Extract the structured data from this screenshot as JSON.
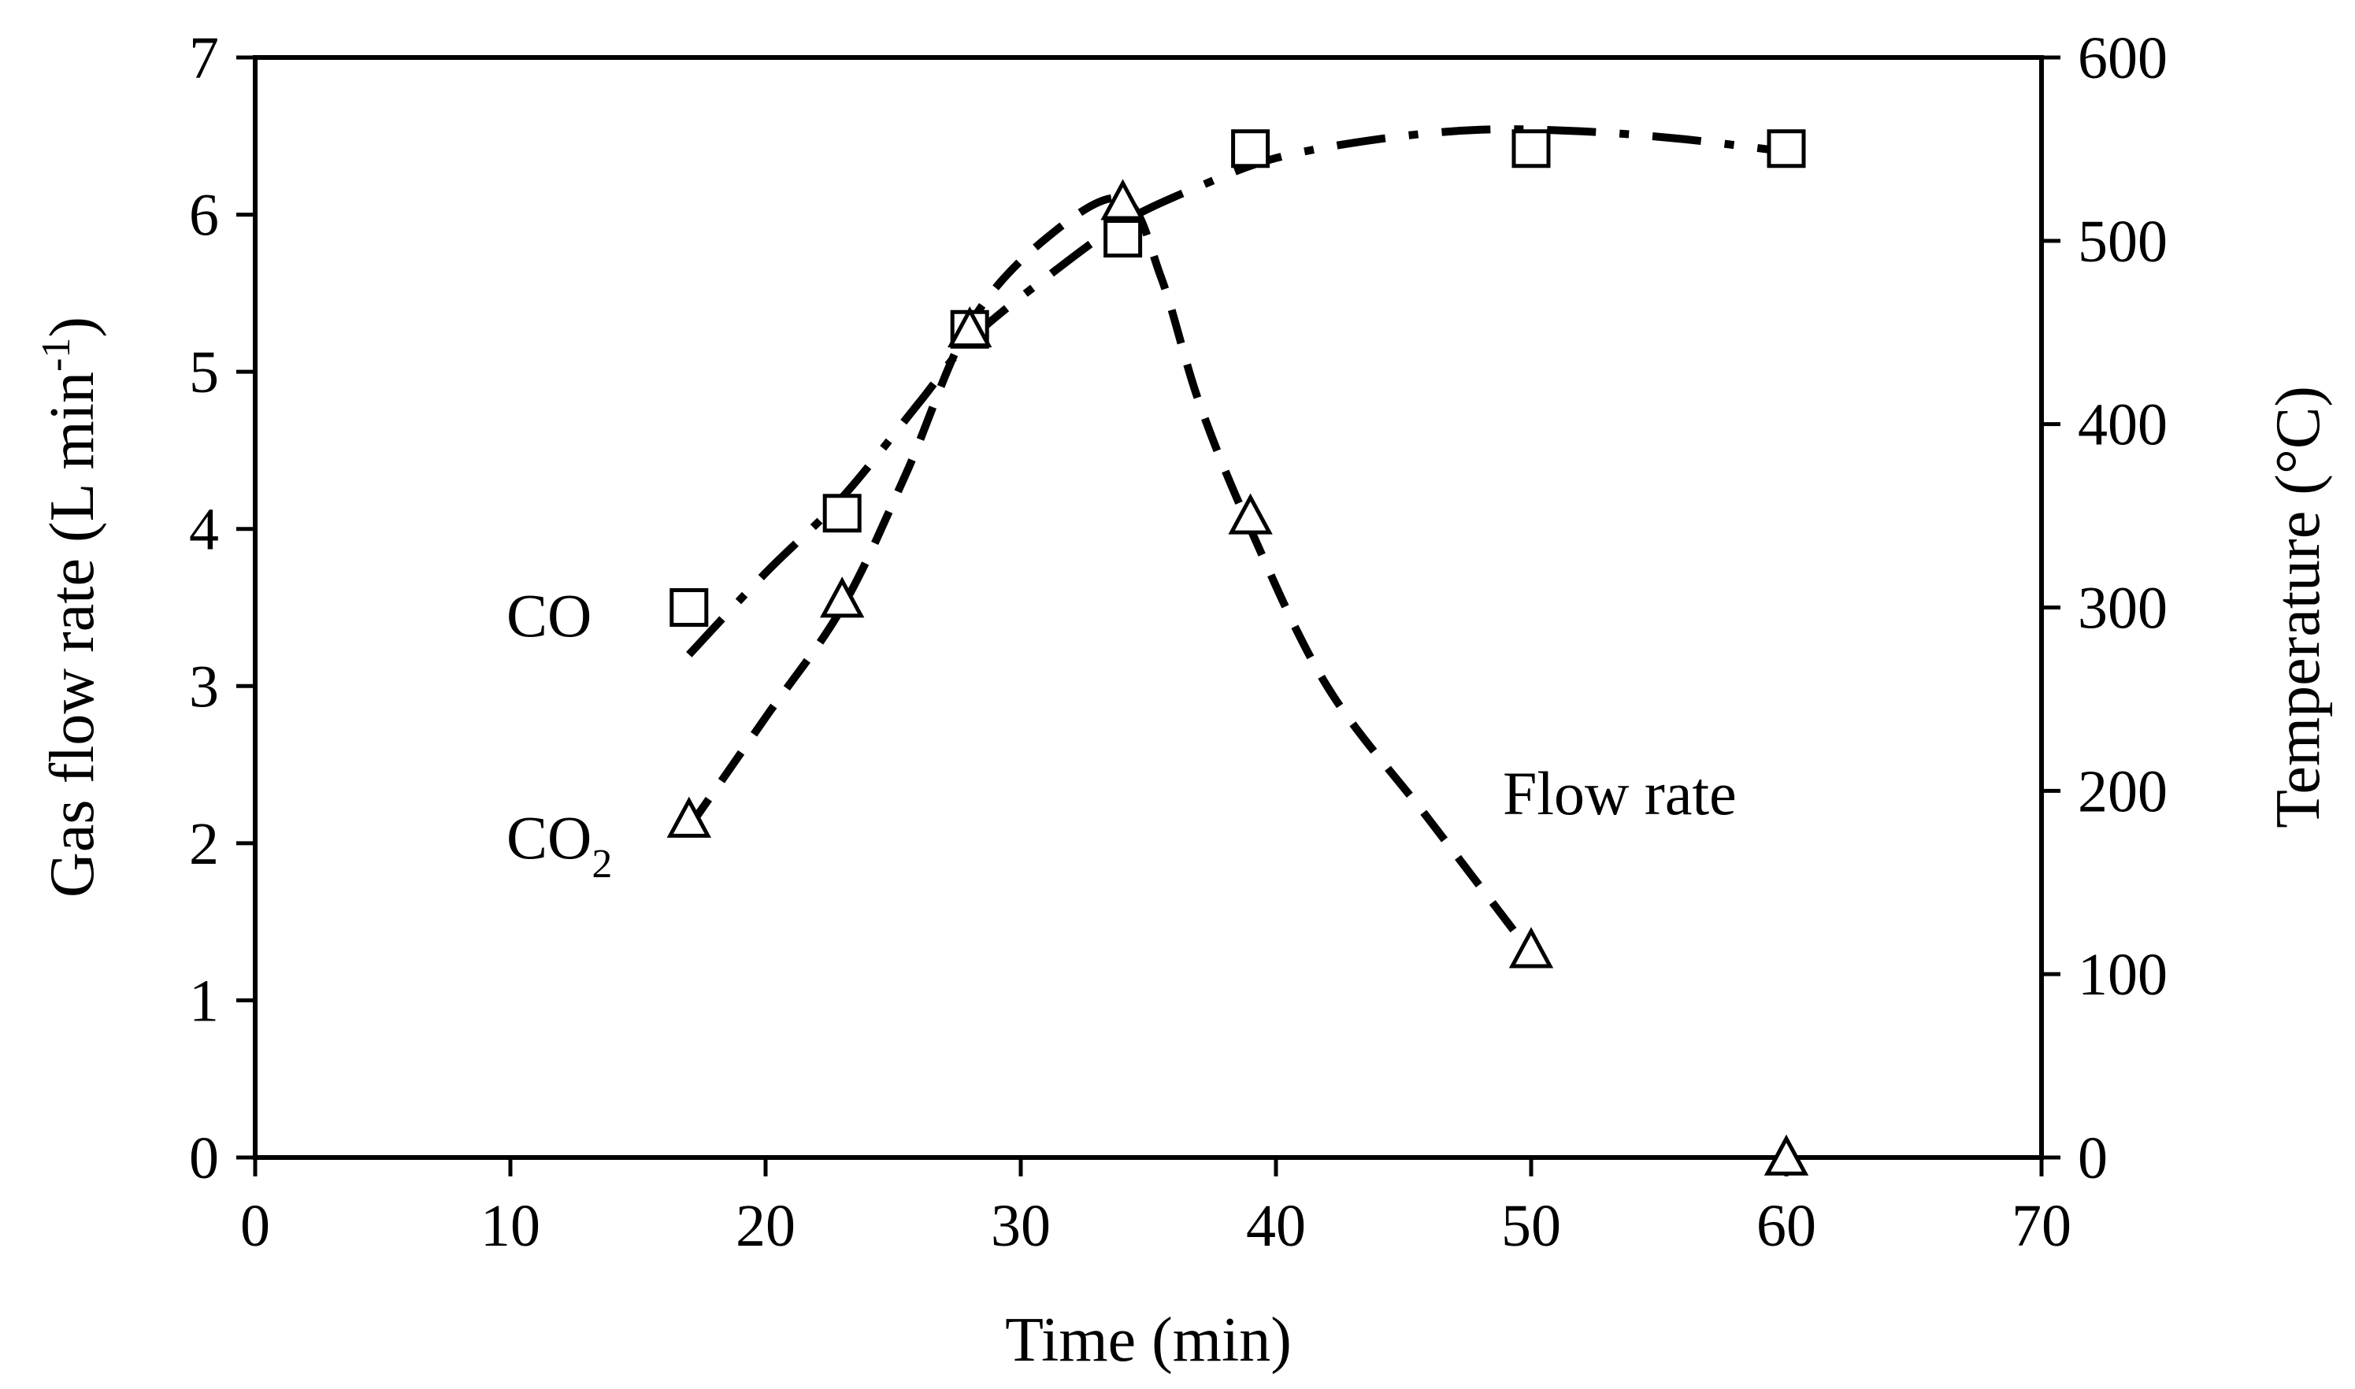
{
  "chart_data": {
    "type": "scatter",
    "title": "",
    "xlabel": "Time (min)",
    "ylabel": "Gas flow rate (L min",
    "ylabel_superscript": "-1",
    "ylabel_close": ")",
    "y2label": "Temperature (°C)",
    "xlim": [
      0,
      70
    ],
    "ylim": [
      0,
      7
    ],
    "y2lim": [
      0,
      600
    ],
    "x_ticks": [
      "0",
      "10",
      "20",
      "30",
      "40",
      "50",
      "60",
      "70"
    ],
    "y_ticks": [
      "0",
      "1",
      "2",
      "3",
      "4",
      "5",
      "6",
      "7"
    ],
    "y2_ticks": [
      "0",
      "100",
      "200",
      "300",
      "400",
      "500",
      "600"
    ],
    "grid": false,
    "series": [
      {
        "name": "CO",
        "marker": "square",
        "axis": "left",
        "x": [
          17,
          23,
          28,
          34,
          39,
          50,
          60
        ],
        "values": [
          3.5,
          4.1,
          5.27,
          5.85,
          6.42,
          6.42,
          6.42
        ]
      },
      {
        "name": "CO2",
        "marker": "triangle",
        "axis": "left",
        "x": [
          17,
          23,
          28,
          34,
          39,
          50,
          60
        ],
        "values": [
          2.15,
          3.55,
          5.27,
          6.08,
          4.08,
          1.32,
          0
        ]
      }
    ],
    "curves": [
      {
        "name": "CO-trend",
        "style": "dash-dot",
        "x": [
          17,
          20,
          23,
          26,
          28,
          31,
          34,
          37,
          40,
          44,
          48,
          52,
          56,
          60
        ],
        "values": [
          3.2,
          3.72,
          4.2,
          4.8,
          5.2,
          5.6,
          5.95,
          6.18,
          6.36,
          6.48,
          6.54,
          6.53,
          6.48,
          6.4
        ]
      },
      {
        "name": "CO2-trend",
        "style": "dash",
        "x": [
          17,
          20,
          23,
          25.5,
          28,
          31,
          34,
          35.5,
          37,
          39,
          42,
          46,
          50
        ],
        "values": [
          2.1,
          2.8,
          3.5,
          4.35,
          5.3,
          5.85,
          6.1,
          5.6,
          4.8,
          4.0,
          3.0,
          2.15,
          1.3
        ]
      }
    ],
    "annotations": {
      "co": "CO",
      "co2_main": "CO",
      "co2_sub": "2",
      "flow_rate": "Flow rate"
    },
    "colors": {
      "foreground": "#000000",
      "background": "#ffffff"
    }
  }
}
